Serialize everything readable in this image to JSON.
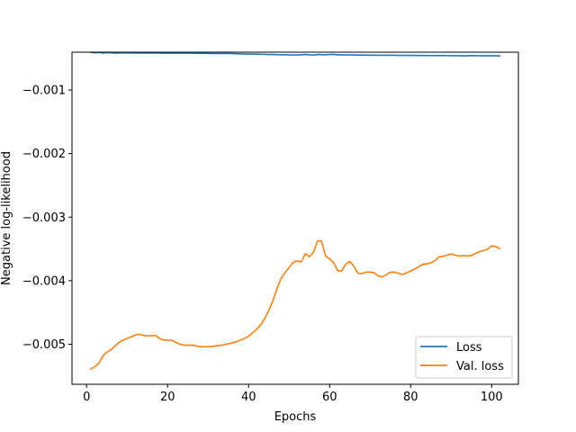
{
  "chart_data": {
    "type": "line",
    "title": "",
    "xlabel": "Epochs",
    "ylabel": "Negative log-likelihood",
    "xlim": [
      -3.6,
      106.6
    ],
    "ylim": [
      -0.00563,
      -0.000405
    ],
    "x_ticks": [
      0,
      20,
      40,
      60,
      80,
      100
    ],
    "x_tick_labels": [
      "0",
      "20",
      "40",
      "60",
      "80",
      "100"
    ],
    "y_ticks": [
      -0.001,
      -0.002,
      -0.003,
      -0.004,
      -0.005
    ],
    "y_tick_labels": [
      "−0.001",
      "−0.002",
      "−0.003",
      "−0.004",
      "−0.005"
    ],
    "grid": false,
    "legend_position": "lower right",
    "x": [
      1,
      2,
      3,
      4,
      5,
      6,
      7,
      8,
      9,
      10,
      11,
      12,
      13,
      14,
      15,
      16,
      17,
      18,
      19,
      20,
      21,
      22,
      23,
      24,
      25,
      26,
      27,
      28,
      29,
      30,
      31,
      32,
      33,
      34,
      35,
      36,
      37,
      38,
      39,
      40,
      41,
      42,
      43,
      44,
      45,
      46,
      47,
      48,
      49,
      50,
      51,
      52,
      53,
      54,
      55,
      56,
      57,
      58,
      59,
      60,
      61,
      62,
      63,
      64,
      65,
      66,
      67,
      68,
      69,
      70,
      71,
      72,
      73,
      74,
      75,
      76,
      77,
      78,
      79,
      80,
      81,
      82,
      83,
      84,
      85,
      86,
      87,
      88,
      89,
      90,
      91,
      92,
      93,
      94,
      95,
      96,
      97,
      98,
      99,
      100,
      101,
      102
    ],
    "series": [
      {
        "name": "Loss",
        "color": "#1f77b4",
        "values": [
          -0.000405,
          -0.000415,
          -0.000408,
          -0.000418,
          -0.000411,
          -0.000414,
          -0.00042,
          -0.000416,
          -0.000416,
          -0.000416,
          -0.000414,
          -0.000419,
          -0.000416,
          -0.000418,
          -0.000416,
          -0.000419,
          -0.000416,
          -0.000418,
          -0.000422,
          -0.000418,
          -0.000422,
          -0.000419,
          -0.00042,
          -0.000419,
          -0.00042,
          -0.000421,
          -0.000422,
          -0.000424,
          -0.000423,
          -0.000424,
          -0.000425,
          -0.000425,
          -0.000426,
          -0.000425,
          -0.000425,
          -0.000427,
          -0.000429,
          -0.00043,
          -0.000432,
          -0.000434,
          -0.000434,
          -0.000436,
          -0.000437,
          -0.000439,
          -0.000442,
          -0.000441,
          -0.000444,
          -0.000445,
          -0.000445,
          -0.000448,
          -0.000449,
          -0.000448,
          -0.000445,
          -0.000441,
          -0.000447,
          -0.000452,
          -0.000441,
          -0.000443,
          -0.000447,
          -0.000441,
          -0.000439,
          -0.000447,
          -0.000447,
          -0.000448,
          -0.000448,
          -0.000448,
          -0.00045,
          -0.00045,
          -0.000452,
          -0.000452,
          -0.000452,
          -0.000453,
          -0.000453,
          -0.000454,
          -0.000453,
          -0.000454,
          -0.000455,
          -0.000455,
          -0.000455,
          -0.000456,
          -0.000456,
          -0.000457,
          -0.000457,
          -0.000457,
          -0.000458,
          -0.000458,
          -0.000459,
          -0.000457,
          -0.000458,
          -0.00046,
          -0.000461,
          -0.00046,
          -0.000462,
          -0.000461,
          -0.000459,
          -0.00046,
          -0.000461,
          -0.00046,
          -0.000462,
          -0.000461,
          -0.000461,
          -0.000464
        ]
      },
      {
        "name": "Val. loss",
        "color": "#ff7f0e",
        "values": [
          -0.00539,
          -0.005355,
          -0.0053,
          -0.00519,
          -0.005123,
          -0.00509,
          -0.005028,
          -0.00497,
          -0.004935,
          -0.00491,
          -0.004883,
          -0.004855,
          -0.004845,
          -0.00486,
          -0.004868,
          -0.004865,
          -0.004862,
          -0.00491,
          -0.004935,
          -0.004935,
          -0.004937,
          -0.00497,
          -0.004997,
          -0.005013,
          -0.005016,
          -0.005013,
          -0.005026,
          -0.00504,
          -0.00504,
          -0.005038,
          -0.005032,
          -0.005026,
          -0.005019,
          -0.005007,
          -0.004994,
          -0.004978,
          -0.00496,
          -0.004935,
          -0.00491,
          -0.004872,
          -0.00482,
          -0.004765,
          -0.004695,
          -0.00459,
          -0.00447,
          -0.004312,
          -0.004125,
          -0.003965,
          -0.003872,
          -0.003795,
          -0.003712,
          -0.003688,
          -0.003705,
          -0.003575,
          -0.00362,
          -0.003555,
          -0.003375,
          -0.003378,
          -0.003615,
          -0.003655,
          -0.00372,
          -0.003845,
          -0.003845,
          -0.003738,
          -0.003697,
          -0.003778,
          -0.003885,
          -0.003888,
          -0.003865,
          -0.003865,
          -0.003875,
          -0.003925,
          -0.00394,
          -0.003905,
          -0.003868,
          -0.003865,
          -0.003885,
          -0.0039,
          -0.003878,
          -0.003848,
          -0.003818,
          -0.00378,
          -0.003742,
          -0.003735,
          -0.003718,
          -0.003685,
          -0.003625,
          -0.003618,
          -0.003598,
          -0.003578,
          -0.003598,
          -0.003612,
          -0.003605,
          -0.003612,
          -0.003605,
          -0.00357,
          -0.003545,
          -0.003525,
          -0.003505,
          -0.00345,
          -0.003465,
          -0.003495
        ]
      }
    ]
  }
}
